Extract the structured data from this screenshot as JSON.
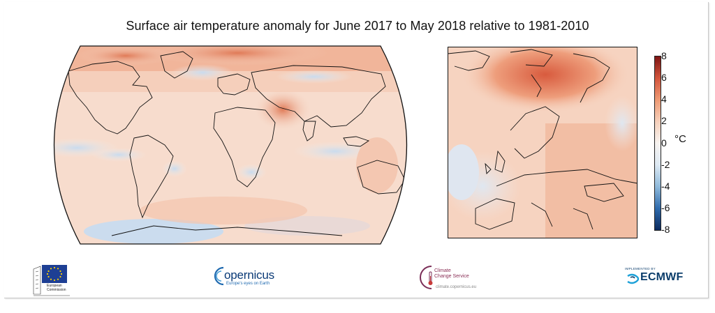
{
  "figure": {
    "title": "Surface air temperature anomaly for June 2017 to May 2018 relative to 1981-2010"
  },
  "colorbar": {
    "unit": "°C",
    "ticks": [
      "8",
      "6",
      "4",
      "2",
      "0",
      "-2",
      "-4",
      "-6",
      "-8"
    ],
    "range": [
      -8,
      8
    ],
    "colormap": [
      "#0b2a5e",
      "#2f6bad",
      "#8fbadb",
      "#dde9f3",
      "#f7f3f0",
      "#f6d0bb",
      "#ee9a74",
      "#d3553c",
      "#7e1514"
    ]
  },
  "logos": {
    "ec": {
      "label_line1": "European",
      "label_line2": "Commission"
    },
    "copernicus": {
      "wordmark": "opernicus",
      "tagline": "Europe's eyes on Earth"
    },
    "c3s": {
      "name_line1": "Climate",
      "name_line2": "Change Service",
      "url": "climate.copernicus.eu"
    },
    "ecmwf": {
      "implemented_by": "IMPLEMENTED BY",
      "wordmark": "ECMWF"
    }
  }
}
